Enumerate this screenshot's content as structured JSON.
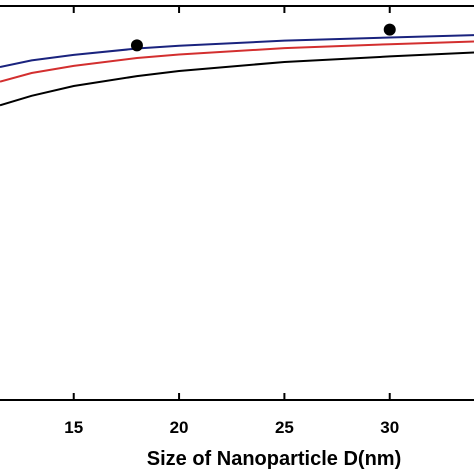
{
  "chart_data": {
    "type": "line",
    "title": "",
    "xlabel": "Size of Nanoparticle D(nm)",
    "ylabel": "",
    "xlim": [
      11.5,
      34.0
    ],
    "ylim": [
      0.0,
      1.0
    ],
    "x_ticks": [
      15,
      20,
      25,
      30
    ],
    "x_tick_labels": [
      "15",
      "20",
      "25",
      "30"
    ],
    "grid": false,
    "series": [
      {
        "type": "line",
        "color": "#1a237e",
        "x": [
          11.5,
          13,
          15,
          18,
          20,
          25,
          30,
          34
        ],
        "y": [
          0.845,
          0.862,
          0.876,
          0.892,
          0.899,
          0.912,
          0.92,
          0.926
        ]
      },
      {
        "type": "line",
        "color": "#d32f2f",
        "x": [
          11.5,
          13,
          15,
          18,
          20,
          25,
          30,
          34
        ],
        "y": [
          0.808,
          0.83,
          0.848,
          0.868,
          0.877,
          0.893,
          0.903,
          0.91
        ]
      },
      {
        "type": "line",
        "color": "#000000",
        "x": [
          11.5,
          13,
          15,
          18,
          20,
          25,
          30,
          34
        ],
        "y": [
          0.748,
          0.772,
          0.797,
          0.822,
          0.835,
          0.858,
          0.872,
          0.882
        ]
      },
      {
        "type": "scatter",
        "color": "#000000",
        "x": [
          18,
          30
        ],
        "y": [
          0.9,
          0.94
        ]
      }
    ]
  }
}
